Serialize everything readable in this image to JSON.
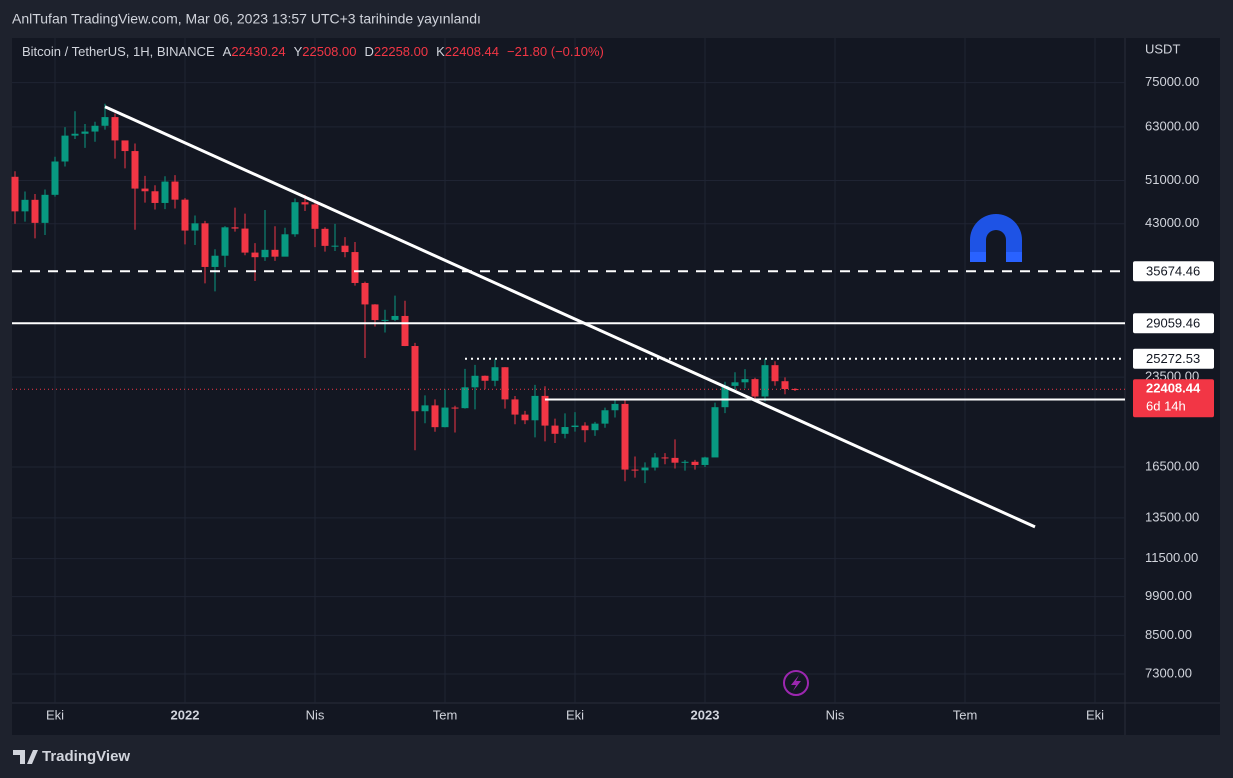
{
  "header": "AnlTufan TradingView.com, Mar 06, 2023 13:57 UTC+3 tarihinde yayınlandı",
  "footer": "TradingView",
  "chart_data": {
    "type": "candlestick",
    "title": "Bitcoin / TetherUS, 1H, BINANCE",
    "ohlc_legend": [
      {
        "label": "A",
        "value": "22430.24"
      },
      {
        "label": "Y",
        "value": "22508.00"
      },
      {
        "label": "D",
        "value": "22258.00"
      },
      {
        "label": "K",
        "value": "22408.44"
      }
    ],
    "change": "−21.80 (−0.10%)",
    "unit": "USDT",
    "countdown": "6d 14h",
    "log_scale": true,
    "grid": true,
    "up_color": "#089981",
    "down_color": "#f23645",
    "categories": [
      null,
      null,
      null,
      null,
      null,
      null,
      null,
      null,
      null,
      null,
      null,
      null,
      null,
      null,
      null,
      null,
      null,
      null,
      null,
      null,
      null,
      null,
      null,
      null,
      null,
      null,
      null,
      null,
      null,
      null,
      null,
      null,
      null,
      null,
      null,
      null,
      null,
      null,
      null,
      null,
      null,
      null,
      null,
      null,
      null,
      null,
      null,
      null,
      null,
      null,
      null,
      null,
      null,
      null,
      null,
      null,
      null,
      null,
      null,
      null,
      null,
      null,
      null,
      null,
      null,
      null,
      null,
      null,
      null,
      null,
      null,
      null,
      null,
      null,
      null,
      null,
      null,
      null,
      null
    ],
    "open": [
      51750,
      45160,
      47260,
      43160,
      48200,
      54960,
      60860,
      61310,
      61840,
      63270,
      65470,
      59720,
      57270,
      49400,
      48880,
      46680,
      50780,
      47290,
      41870,
      43080,
      36280,
      37920,
      42410,
      42200,
      38390,
      37700,
      38810,
      37780,
      41260,
      46820,
      46410,
      42160,
      39420,
      39450,
      38470,
      34060,
      31300,
      29430,
      29450,
      29910,
      26570,
      20550,
      21030,
      19300,
      20850,
      20800,
      22580,
      23630,
      23170,
      24440,
      21530,
      20280,
      19830,
      21830,
      19420,
      18800,
      19310,
      19420,
      19070,
      19570,
      20630,
      21150,
      16330,
      16280,
      16460,
      17130,
      17100,
      16780,
      16840,
      16630,
      17130,
      20880,
      22710,
      23030,
      23320,
      21780,
      24640,
      23130,
      22430.24
    ],
    "high": [
      52900,
      48840,
      48360,
      49230,
      56000,
      62930,
      67000,
      63710,
      64270,
      69000,
      66400,
      59400,
      59000,
      51940,
      50050,
      51870,
      52090,
      47570,
      44420,
      43500,
      38900,
      42600,
      45820,
      44750,
      39840,
      45400,
      42590,
      42330,
      47500,
      48190,
      47030,
      42420,
      42980,
      40800,
      40020,
      34240,
      31340,
      30650,
      32400,
      31750,
      26900,
      21880,
      21530,
      22400,
      21000,
      24280,
      24670,
      23660,
      25210,
      24450,
      21820,
      20580,
      22800,
      22670,
      19960,
      20380,
      20480,
      19680,
      19710,
      20840,
      21470,
      21480,
      17190,
      16800,
      17420,
      17420,
      18390,
      16960,
      16970,
      17180,
      21260,
      23080,
      23960,
      24260,
      23450,
      25250,
      25020,
      23480,
      22508
    ],
    "low": [
      43000,
      43370,
      40600,
      41150,
      47850,
      53900,
      60060,
      58000,
      59400,
      62330,
      55600,
      53500,
      42000,
      46750,
      45500,
      45560,
      45680,
      39650,
      39560,
      34000,
      32950,
      36250,
      41700,
      37990,
      34330,
      37160,
      37150,
      38200,
      40870,
      45230,
      39220,
      38540,
      38630,
      37690,
      33710,
      25340,
      28700,
      28020,
      29300,
      26560,
      17620,
      19600,
      18950,
      19280,
      18900,
      20760,
      20700,
      22410,
      22680,
      20760,
      19520,
      19530,
      18540,
      18250,
      18130,
      18470,
      18960,
      18190,
      18650,
      19260,
      20050,
      15600,
      15820,
      15480,
      16270,
      16680,
      16400,
      16260,
      16330,
      16500,
      17300,
      20400,
      22300,
      22500,
      21450,
      21350,
      22720,
      21970,
      22258
    ],
    "close": [
      45160,
      47260,
      43160,
      48200,
      54960,
      60860,
      61310,
      61840,
      63270,
      65470,
      59720,
      57270,
      49400,
      48880,
      46680,
      50780,
      47290,
      41870,
      43080,
      36280,
      37920,
      42410,
      42200,
      38390,
      37700,
      38810,
      37780,
      41260,
      46820,
      46410,
      42160,
      39420,
      39450,
      38470,
      34060,
      31300,
      29430,
      29450,
      29910,
      26570,
      20550,
      21030,
      19300,
      20850,
      20800,
      22580,
      23630,
      23170,
      24440,
      21530,
      20280,
      19830,
      21830,
      19420,
      18800,
      19310,
      19420,
      19070,
      19570,
      20630,
      21150,
      16330,
      16280,
      16460,
      17130,
      17100,
      16780,
      16840,
      16630,
      17130,
      20880,
      22710,
      23030,
      23320,
      21780,
      24640,
      23130,
      22430.24,
      22408.44
    ],
    "price_lines": [
      {
        "value": 35674.46,
        "style": "dashed"
      },
      {
        "value": 29059.46,
        "style": "solid"
      },
      {
        "value": 25272.53,
        "style": "dotted",
        "x0": 45
      },
      {
        "value": 21524.13,
        "style": "solid",
        "x0": 53
      }
    ],
    "trendline": {
      "x": [
        9,
        102
      ],
      "y": [
        68200,
        13030
      ]
    },
    "xlim": [
      -0.3,
      111
    ],
    "ylim": [
      6460,
      88700
    ],
    "xticks": [
      {
        "value": 4,
        "label": "Eki"
      },
      {
        "value": 17,
        "label": "2022"
      },
      {
        "value": 30,
        "label": "Nis"
      },
      {
        "value": 43,
        "label": "Tem"
      },
      {
        "value": 56,
        "label": "Eki"
      },
      {
        "value": 69,
        "label": "2023"
      },
      {
        "value": 82,
        "label": "Nis"
      },
      {
        "value": 95,
        "label": "Tem"
      },
      {
        "value": 108,
        "label": "Eki"
      }
    ],
    "yticks": [
      {
        "value": 75000,
        "label": "75000.00"
      },
      {
        "value": 63000,
        "label": "63000.00"
      },
      {
        "value": 51000,
        "label": "51000.00"
      },
      {
        "value": 43000,
        "label": "43000.00"
      },
      {
        "value": 23500,
        "label": "23500.00"
      },
      {
        "value": 16500,
        "label": "16500.00"
      },
      {
        "value": 13500,
        "label": "13500.00"
      },
      {
        "value": 11500,
        "label": "11500.00"
      },
      {
        "value": 9900,
        "label": "9900.00"
      },
      {
        "value": 8500,
        "label": "8500.00"
      },
      {
        "value": 7300,
        "label": "7300.00"
      }
    ]
  }
}
